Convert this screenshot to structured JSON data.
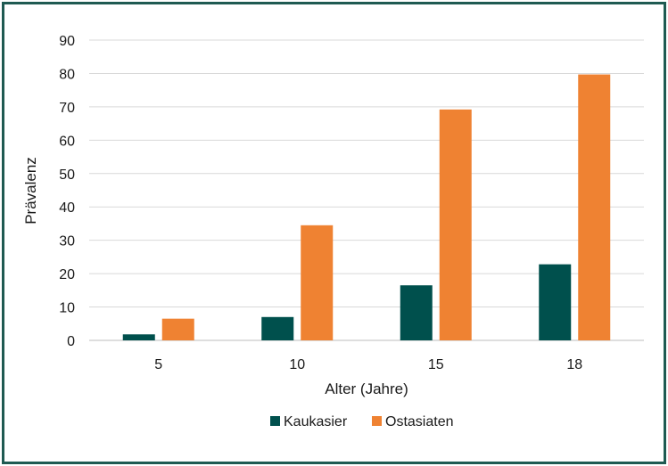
{
  "chart_data": {
    "type": "bar",
    "categories": [
      "5",
      "10",
      "15",
      "18"
    ],
    "series": [
      {
        "name": "Kaukasier",
        "values": [
          1.8,
          7.0,
          16.5,
          22.8
        ],
        "color": "#00504d"
      },
      {
        "name": "Ostasiaten",
        "values": [
          6.5,
          34.5,
          69.2,
          79.7
        ],
        "color": "#ef8232"
      }
    ],
    "xlabel": "Alter (Jahre)",
    "ylabel": "Prävalenz",
    "ylim": [
      0,
      90
    ],
    "yticks": [
      "0",
      "10",
      "20",
      "30",
      "40",
      "50",
      "60",
      "70",
      "80",
      "90"
    ],
    "grid": true,
    "legend_position": "bottom"
  }
}
